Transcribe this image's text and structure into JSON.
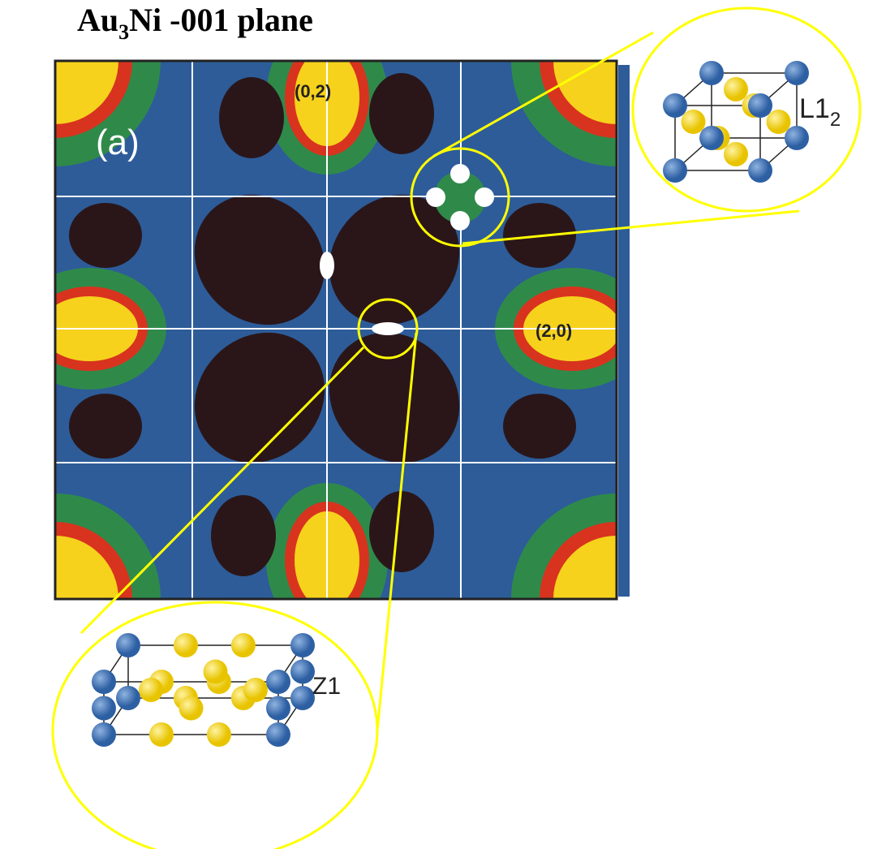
{
  "title": {
    "main": "Au",
    "subscript": "3",
    "rest": "Ni -001 plane"
  },
  "panel": {
    "label": "(a)",
    "spots": [
      "(0,2)",
      "(2,0)"
    ]
  },
  "insets": [
    {
      "label": "L1",
      "subscript": "2"
    },
    {
      "label": "Z1"
    }
  ]
}
